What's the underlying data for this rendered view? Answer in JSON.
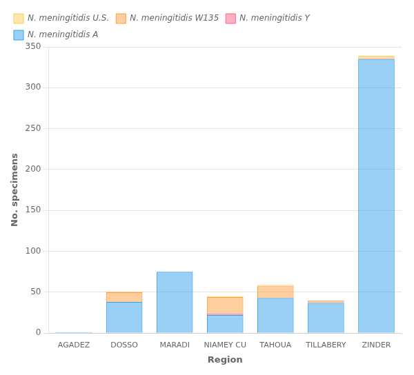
{
  "chart_data": {
    "type": "bar",
    "stacked": true,
    "xlabel": "Region",
    "ylabel": "No. specimens",
    "categories": [
      "AGADEZ",
      "DOSSO",
      "MARADI",
      "NIAMEY CU",
      "TAHOUA",
      "TILLABERY",
      "ZINDER"
    ],
    "series": [
      {
        "name": "N. meningitidis A",
        "values": [
          1,
          38,
          75,
          22,
          43,
          37,
          335
        ]
      },
      {
        "name": "N. meningitidis Y",
        "values": [
          0,
          0,
          0,
          2,
          0,
          0,
          0
        ]
      },
      {
        "name": "N. meningitidis W135",
        "values": [
          0,
          12,
          0,
          20,
          15,
          3,
          2
        ]
      },
      {
        "name": "N. meningitidis U.S.",
        "values": [
          0,
          1,
          0,
          1,
          1,
          0,
          2
        ]
      }
    ],
    "ylim": [
      0,
      350
    ],
    "yticks": [
      0,
      50,
      100,
      150,
      200,
      250,
      300,
      350
    ],
    "grid": true,
    "legend": "upper left"
  }
}
